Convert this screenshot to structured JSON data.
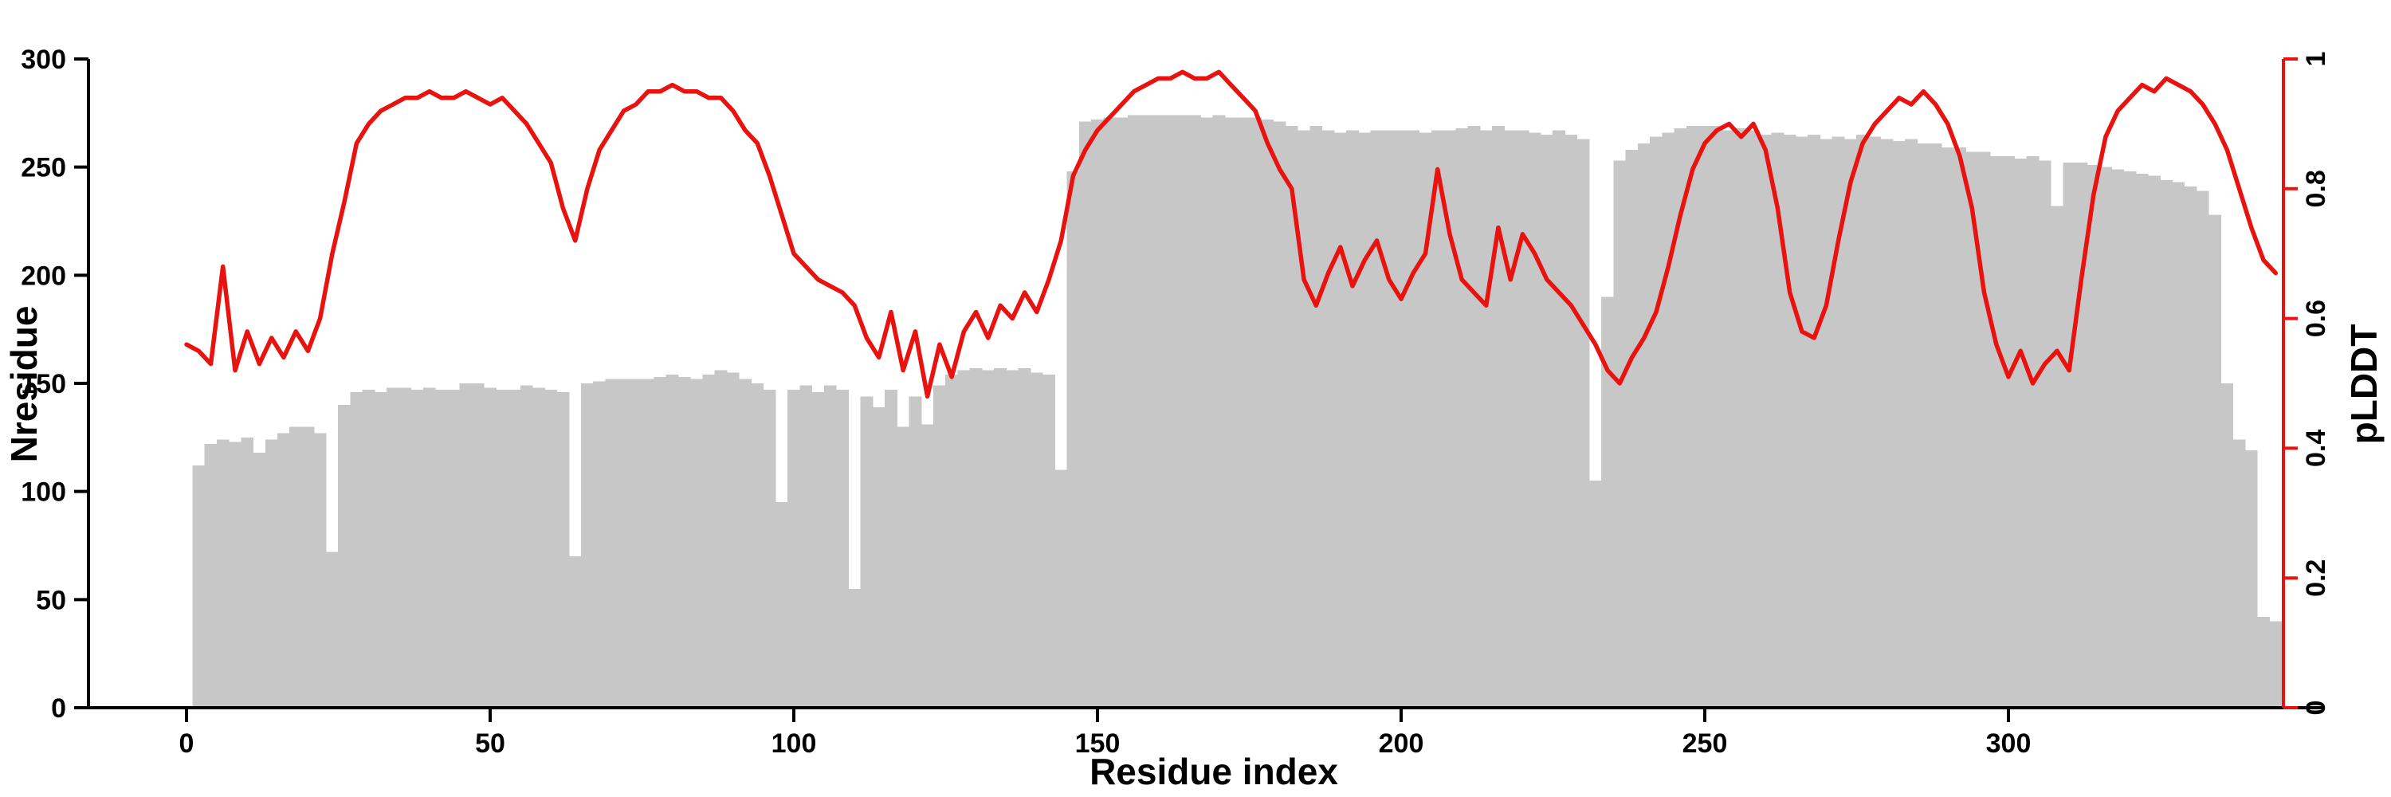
{
  "colors": {
    "bar_gray": "#c7c7c7",
    "line_red": "#e8120f",
    "axis_black": "#000000"
  },
  "chart_data": {
    "type": "bar+line (dual axis)",
    "title": "",
    "xlabel": "Residue index",
    "ylabel_left": "Nresidue",
    "ylabel_right": "pLDDT",
    "x_range": [
      0,
      345
    ],
    "y_left_range": [
      0,
      300
    ],
    "y_right_range": [
      0,
      1
    ],
    "x_ticks": [
      0,
      50,
      100,
      150,
      200,
      250,
      300
    ],
    "y_left_ticks": [
      0,
      50,
      100,
      150,
      200,
      250,
      300
    ],
    "y_right_ticks": [
      0,
      0.2,
      0.4,
      0.6,
      0.8,
      1
    ],
    "grid": false,
    "legend": "none",
    "series": [
      {
        "name": "Nresidue",
        "type": "bar",
        "axis": "left",
        "x_start": 0,
        "x_step": 2,
        "y": [
          0,
          112,
          122,
          124,
          123,
          125,
          118,
          124,
          127,
          130,
          130,
          127,
          72,
          140,
          146,
          147,
          146,
          148,
          148,
          147,
          148,
          147,
          147,
          150,
          150,
          148,
          147,
          147,
          149,
          148,
          147,
          146,
          70,
          150,
          151,
          152,
          152,
          152,
          152,
          153,
          154,
          153,
          152,
          154,
          156,
          155,
          152,
          150,
          147,
          95,
          147,
          149,
          146,
          149,
          147,
          55,
          144,
          139,
          147,
          130,
          144,
          131,
          149,
          154,
          156,
          157,
          156,
          157,
          156,
          157,
          155,
          154,
          110,
          248,
          271,
          272,
          273,
          273,
          274,
          274,
          274,
          274,
          274,
          274,
          273,
          274,
          273,
          273,
          273,
          272,
          271,
          269,
          267,
          269,
          267,
          266,
          267,
          266,
          267,
          267,
          267,
          267,
          266,
          267,
          267,
          268,
          269,
          267,
          269,
          267,
          267,
          266,
          265,
          267,
          265,
          263,
          105,
          190,
          253,
          258,
          261,
          264,
          266,
          268,
          269,
          269,
          269,
          267,
          268,
          267,
          265,
          266,
          265,
          264,
          265,
          263,
          264,
          263,
          265,
          264,
          263,
          262,
          263,
          261,
          261,
          259,
          259,
          257,
          257,
          255,
          255,
          254,
          255,
          253,
          232,
          252,
          252,
          251,
          250,
          249,
          248,
          247,
          246,
          244,
          243,
          241,
          239,
          228,
          150,
          124,
          119,
          42,
          40
        ]
      },
      {
        "name": "pLDDT",
        "type": "line",
        "axis": "right",
        "x_start": 0,
        "x_step": 2,
        "y": [
          0.56,
          0.55,
          0.53,
          0.68,
          0.52,
          0.58,
          0.53,
          0.57,
          0.54,
          0.58,
          0.55,
          0.6,
          0.7,
          0.78,
          0.87,
          0.9,
          0.92,
          0.93,
          0.94,
          0.94,
          0.95,
          0.94,
          0.94,
          0.95,
          0.94,
          0.93,
          0.94,
          0.92,
          0.9,
          0.87,
          0.84,
          0.77,
          0.72,
          0.8,
          0.86,
          0.89,
          0.92,
          0.93,
          0.95,
          0.95,
          0.96,
          0.95,
          0.95,
          0.94,
          0.94,
          0.92,
          0.89,
          0.87,
          0.82,
          0.76,
          0.7,
          0.68,
          0.66,
          0.65,
          0.64,
          0.62,
          0.57,
          0.54,
          0.61,
          0.52,
          0.58,
          0.48,
          0.56,
          0.51,
          0.58,
          0.61,
          0.57,
          0.62,
          0.6,
          0.64,
          0.61,
          0.66,
          0.72,
          0.82,
          0.86,
          0.89,
          0.91,
          0.93,
          0.95,
          0.96,
          0.97,
          0.97,
          0.98,
          0.97,
          0.97,
          0.98,
          0.96,
          0.94,
          0.92,
          0.87,
          0.83,
          0.8,
          0.66,
          0.62,
          0.67,
          0.71,
          0.65,
          0.69,
          0.72,
          0.66,
          0.63,
          0.67,
          0.7,
          0.83,
          0.73,
          0.66,
          0.64,
          0.62,
          0.74,
          0.66,
          0.73,
          0.7,
          0.66,
          0.64,
          0.62,
          0.59,
          0.56,
          0.52,
          0.5,
          0.54,
          0.57,
          0.61,
          0.68,
          0.76,
          0.83,
          0.87,
          0.89,
          0.9,
          0.88,
          0.9,
          0.86,
          0.77,
          0.64,
          0.58,
          0.57,
          0.62,
          0.72,
          0.81,
          0.87,
          0.9,
          0.92,
          0.94,
          0.93,
          0.95,
          0.93,
          0.9,
          0.85,
          0.77,
          0.64,
          0.56,
          0.51,
          0.55,
          0.5,
          0.53,
          0.55,
          0.52,
          0.66,
          0.79,
          0.88,
          0.92,
          0.94,
          0.96,
          0.95,
          0.97,
          0.96,
          0.95,
          0.93,
          0.9,
          0.86,
          0.8,
          0.74,
          0.69,
          0.67
        ]
      }
    ]
  }
}
